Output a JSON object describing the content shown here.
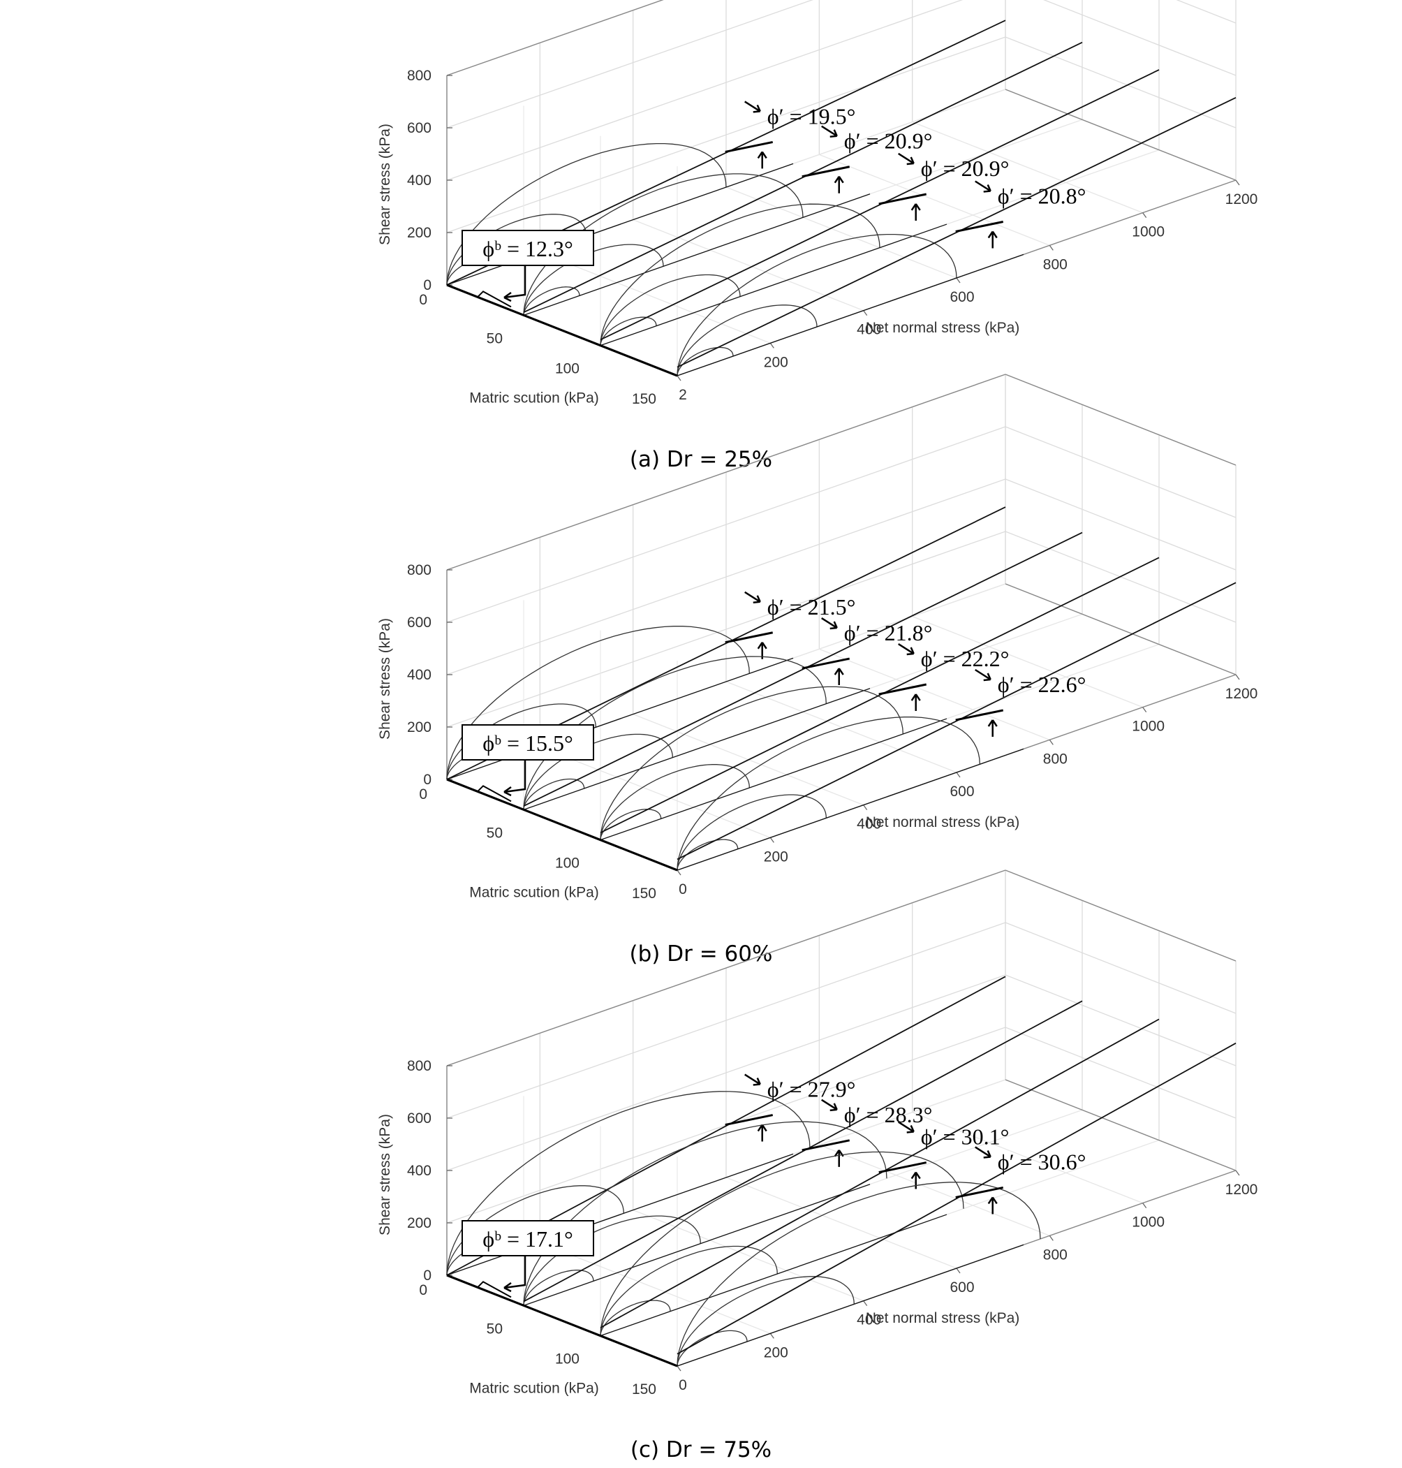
{
  "chart_data": [
    {
      "type": "surface-3d",
      "caption": "(a) Dr = 25%",
      "xlabel": "Net normal stress (kPa)",
      "ylabel": "Matric scution (kPa)",
      "zlabel": "Shear stress (kPa)",
      "xlim": [
        0,
        1200
      ],
      "ylim": [
        0,
        150
      ],
      "zlim": [
        0,
        800
      ],
      "xticks": [
        "2",
        "200",
        "400",
        "600",
        "800",
        "1000",
        "1200"
      ],
      "yticks": [
        "0",
        "50",
        "100",
        "150"
      ],
      "zticks": [
        "0",
        "200",
        "400",
        "600",
        "800"
      ],
      "grid": true,
      "suction_levels": [
        0,
        50,
        100,
        150
      ],
      "phi_prime_labels": [
        "ϕ′ = 19.5°",
        "ϕ′ = 20.9°",
        "ϕ′ = 20.9°",
        "ϕ′ = 20.8°"
      ],
      "phi_prime_deg": [
        19.5,
        20.9,
        20.9,
        20.8
      ],
      "phi_b_label": "ϕᵇ = 12.3°",
      "phi_b_deg": 12.3,
      "circles": [
        [
          [
            0,
            120
          ],
          [
            0,
            300
          ],
          [
            0,
            600
          ]
        ],
        [
          [
            0,
            120
          ],
          [
            0,
            300
          ],
          [
            0,
            600
          ]
        ],
        [
          [
            0,
            120
          ],
          [
            0,
            300
          ],
          [
            0,
            600
          ]
        ],
        [
          [
            0,
            120
          ],
          [
            0,
            300
          ],
          [
            0,
            600
          ]
        ]
      ]
    },
    {
      "type": "surface-3d",
      "caption": "(b) Dr = 60%",
      "xlabel": "Net normal stress (kPa)",
      "ylabel": "Matric scution (kPa)",
      "zlabel": "Shear stress (kPa)",
      "xlim": [
        0,
        1200
      ],
      "ylim": [
        0,
        150
      ],
      "zlim": [
        0,
        800
      ],
      "xticks": [
        "0",
        "200",
        "400",
        "600",
        "800",
        "1000",
        "1200"
      ],
      "yticks": [
        "0",
        "50",
        "100",
        "150"
      ],
      "zticks": [
        "0",
        "200",
        "400",
        "600",
        "800"
      ],
      "grid": true,
      "suction_levels": [
        0,
        50,
        100,
        150
      ],
      "phi_prime_labels": [
        "ϕ′ = 21.5°",
        "ϕ′ = 21.8°",
        "ϕ′ = 22.2°",
        "ϕ′ = 22.6°"
      ],
      "phi_prime_deg": [
        21.5,
        21.8,
        22.2,
        22.6
      ],
      "phi_b_label": "ϕᵇ = 15.5°",
      "phi_b_deg": 15.5,
      "circles": [
        [
          [
            0,
            130
          ],
          [
            0,
            320
          ],
          [
            0,
            650
          ]
        ],
        [
          [
            0,
            130
          ],
          [
            0,
            320
          ],
          [
            0,
            650
          ]
        ],
        [
          [
            0,
            130
          ],
          [
            0,
            320
          ],
          [
            0,
            650
          ]
        ],
        [
          [
            0,
            130
          ],
          [
            0,
            320
          ],
          [
            0,
            650
          ]
        ]
      ]
    },
    {
      "type": "surface-3d",
      "caption": "(c) Dr = 75%",
      "xlabel": "Net normal stress (kPa)",
      "ylabel": "Matric scution (kPa)",
      "zlabel": "Shear stress (kPa)",
      "xlim": [
        0,
        1200
      ],
      "ylim": [
        0,
        150
      ],
      "zlim": [
        0,
        800
      ],
      "xticks": [
        "0",
        "200",
        "400",
        "600",
        "800",
        "1000",
        "1200"
      ],
      "yticks": [
        "0",
        "50",
        "100",
        "150"
      ],
      "zticks": [
        "0",
        "200",
        "400",
        "600",
        "800"
      ],
      "grid": true,
      "suction_levels": [
        0,
        50,
        100,
        150
      ],
      "phi_prime_labels": [
        "ϕ′ = 27.9°",
        "ϕ′ = 28.3°",
        "ϕ′ = 30.1°",
        "ϕ′ = 30.6°"
      ],
      "phi_prime_deg": [
        27.9,
        28.3,
        30.1,
        30.6
      ],
      "phi_b_label": "ϕᵇ = 17.1°",
      "phi_b_deg": 17.1,
      "circles": [
        [
          [
            0,
            150
          ],
          [
            0,
            380
          ],
          [
            0,
            780
          ]
        ],
        [
          [
            0,
            150
          ],
          [
            0,
            380
          ],
          [
            0,
            780
          ]
        ],
        [
          [
            0,
            150
          ],
          [
            0,
            380
          ],
          [
            0,
            780
          ]
        ],
        [
          [
            0,
            150
          ],
          [
            0,
            380
          ],
          [
            0,
            780
          ]
        ]
      ]
    }
  ]
}
